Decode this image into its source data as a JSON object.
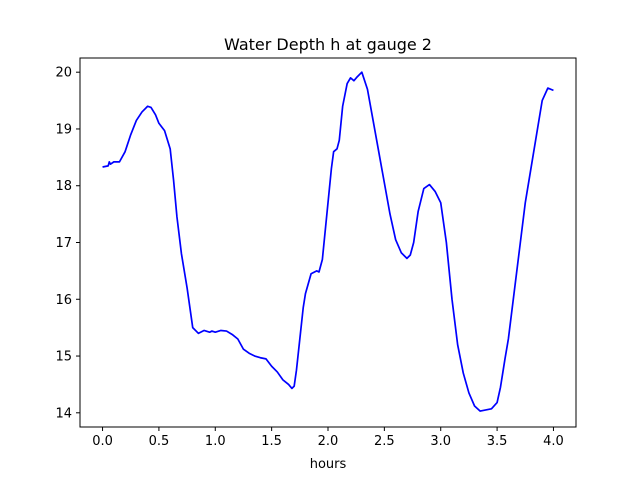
{
  "chart_data": {
    "type": "line",
    "title": "Water Depth h at gauge 2",
    "xlabel": "hours",
    "ylabel": "",
    "xlim": [
      -0.2,
      4.2
    ],
    "ylim": [
      13.75,
      20.25
    ],
    "xticks": [
      0.0,
      0.5,
      1.0,
      1.5,
      2.0,
      2.5,
      3.0,
      3.5,
      4.0
    ],
    "xtick_labels": [
      "0.0",
      "0.5",
      "1.0",
      "1.5",
      "2.0",
      "2.5",
      "3.0",
      "3.5",
      "4.0"
    ],
    "yticks": [
      14,
      15,
      16,
      17,
      18,
      19,
      20
    ],
    "ytick_labels": [
      "14",
      "15",
      "16",
      "17",
      "18",
      "19",
      "20"
    ],
    "grid": false,
    "series": [
      {
        "color": "#0000ff",
        "x": [
          0.0,
          0.05,
          0.06,
          0.07,
          0.1,
          0.15,
          0.2,
          0.25,
          0.3,
          0.35,
          0.4,
          0.43,
          0.47,
          0.5,
          0.55,
          0.6,
          0.63,
          0.66,
          0.7,
          0.75,
          0.8,
          0.85,
          0.9,
          0.95,
          0.97,
          1.0,
          1.05,
          1.1,
          1.15,
          1.2,
          1.25,
          1.3,
          1.35,
          1.4,
          1.45,
          1.5,
          1.55,
          1.6,
          1.65,
          1.68,
          1.7,
          1.72,
          1.75,
          1.78,
          1.8,
          1.85,
          1.9,
          1.92,
          1.95,
          2.0,
          2.03,
          2.05,
          2.08,
          2.1,
          2.13,
          2.17,
          2.2,
          2.23,
          2.26,
          2.3,
          2.35,
          2.4,
          2.45,
          2.5,
          2.55,
          2.6,
          2.65,
          2.7,
          2.73,
          2.76,
          2.8,
          2.85,
          2.9,
          2.95,
          3.0,
          3.05,
          3.1,
          3.15,
          3.2,
          3.25,
          3.3,
          3.35,
          3.4,
          3.45,
          3.5,
          3.53,
          3.55,
          3.57,
          3.6,
          3.65,
          3.7,
          3.75,
          3.8,
          3.85,
          3.9,
          3.95,
          4.0
        ],
        "y": [
          18.33,
          18.35,
          18.42,
          18.38,
          18.42,
          18.42,
          18.6,
          18.9,
          19.15,
          19.3,
          19.4,
          19.38,
          19.25,
          19.1,
          18.97,
          18.65,
          18.1,
          17.45,
          16.8,
          16.2,
          15.5,
          15.4,
          15.45,
          15.42,
          15.44,
          15.42,
          15.45,
          15.44,
          15.38,
          15.3,
          15.12,
          15.05,
          15.0,
          14.97,
          14.95,
          14.82,
          14.72,
          14.58,
          14.5,
          14.43,
          14.47,
          14.75,
          15.3,
          15.85,
          16.1,
          16.45,
          16.5,
          16.48,
          16.7,
          17.7,
          18.3,
          18.6,
          18.65,
          18.8,
          19.4,
          19.8,
          19.9,
          19.85,
          19.92,
          20.0,
          19.7,
          19.15,
          18.6,
          18.05,
          17.5,
          17.05,
          16.82,
          16.72,
          16.78,
          17.0,
          17.55,
          17.95,
          18.02,
          17.9,
          17.7,
          17.0,
          16.0,
          15.2,
          14.7,
          14.35,
          14.12,
          14.03,
          14.05,
          14.07,
          14.18,
          14.45,
          14.7,
          14.95,
          15.3,
          16.1,
          16.9,
          17.7,
          18.3,
          18.9,
          19.5,
          19.72,
          19.68
        ]
      }
    ]
  }
}
